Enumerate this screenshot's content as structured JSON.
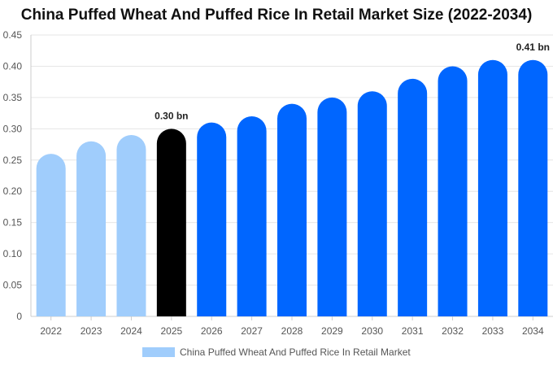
{
  "chart_data": {
    "type": "bar",
    "title": "China Puffed Wheat And Puffed Rice In Retail Market Size (2022-2034)",
    "categories": [
      "2022",
      "2023",
      "2024",
      "2025",
      "2026",
      "2027",
      "2028",
      "2029",
      "2030",
      "2031",
      "2032",
      "2033",
      "2034"
    ],
    "values": [
      0.26,
      0.28,
      0.29,
      0.3,
      0.31,
      0.32,
      0.34,
      0.35,
      0.36,
      0.38,
      0.4,
      0.41,
      0.41
    ],
    "ylim": [
      0,
      0.45
    ],
    "yticks": [
      "0",
      "0.05",
      "0.10",
      "0.15",
      "0.20",
      "0.25",
      "0.30",
      "0.35",
      "0.40",
      "0.45"
    ],
    "ytick_values": [
      0,
      0.05,
      0.1,
      0.15,
      0.2,
      0.25,
      0.3,
      0.35,
      0.4,
      0.45
    ],
    "xlabel": "",
    "ylabel": "",
    "annotations": [
      {
        "index": 3,
        "text": "0.30 bn"
      },
      {
        "index": 12,
        "text": "0.41 bn"
      }
    ],
    "legend": {
      "label": "China Puffed Wheat And Puffed Rice In Retail Market",
      "position": "bottom"
    },
    "colors": {
      "historical": "#a0cdfc",
      "current": "#000000",
      "forecast": "#0066ff",
      "legend_swatch": "#a0cdfc",
      "grid": "#e6e6e6",
      "axis": "#cccccc"
    },
    "bar_roles": [
      "historical",
      "historical",
      "historical",
      "current",
      "forecast",
      "forecast",
      "forecast",
      "forecast",
      "forecast",
      "forecast",
      "forecast",
      "forecast",
      "forecast"
    ]
  }
}
